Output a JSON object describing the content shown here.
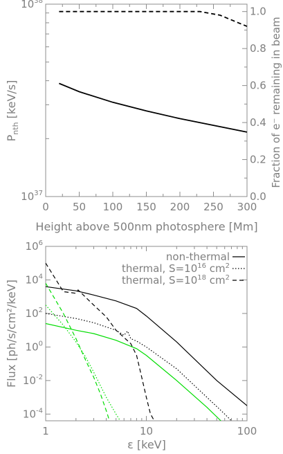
{
  "chart_data": [
    {
      "type": "line",
      "xlabel": "Height above 500nm photosphere [Mm]",
      "ylabel_main": "P",
      "ylabel_sub": "nth",
      "ylabel_unit": " [keV/s]",
      "ylabel_right": "Fraction of e⁻ remaining in beam",
      "xlim": [
        0,
        300
      ],
      "ylim_log10": [
        37,
        38
      ],
      "y_right_lim": [
        0,
        1.04
      ],
      "x_ticks": [
        "0",
        "50",
        "100",
        "150",
        "200",
        "250",
        "300"
      ],
      "x_tick_values": [
        0,
        50,
        100,
        150,
        200,
        250,
        300
      ],
      "y_tick_labels": [
        {
          "base": "10",
          "exp": "38",
          "log10": 38
        },
        {
          "base": "10",
          "exp": "37",
          "log10": 37
        }
      ],
      "y_right_ticks": [
        "0.0",
        "0.2",
        "0.4",
        "0.6",
        "0.8",
        "1.0"
      ],
      "y_right_tick_values": [
        0,
        0.2,
        0.4,
        0.6,
        0.8,
        1.0
      ],
      "series": [
        {
          "axis": "left",
          "style": "solid",
          "x": [
            20,
            50,
            100,
            150,
            200,
            250,
            300
          ],
          "log10_y": [
            37.588,
            37.545,
            37.49,
            37.445,
            37.405,
            37.37,
            37.335
          ]
        },
        {
          "axis": "right",
          "style": "dashed",
          "x": [
            20,
            100,
            200,
            230,
            260,
            280,
            300
          ],
          "y": [
            1.0,
            1.0,
            1.0,
            1.0,
            0.98,
            0.95,
            0.92
          ]
        }
      ]
    },
    {
      "type": "line",
      "xlabel": "ε [keV]",
      "ylabel": "Flux [ph/s/cm²/keV]",
      "x_log10_lim": [
        0,
        2
      ],
      "y_log10_lim": [
        -4.4,
        6
      ],
      "x_ticks": [
        "1",
        "10",
        "100"
      ],
      "x_tick_values": [
        1,
        10,
        100
      ],
      "y_tick_labels": [
        {
          "base": "10",
          "exp": "6",
          "log10": 6
        },
        {
          "base": "10",
          "exp": "4",
          "log10": 4
        },
        {
          "base": "10",
          "exp": "2",
          "log10": 2
        },
        {
          "base": "10",
          "exp": "0",
          "log10": 0
        },
        {
          "base": "10",
          "exp": "-2",
          "log10": -2
        },
        {
          "base": "10",
          "exp": "-4",
          "log10": -4
        }
      ],
      "legend": [
        {
          "label": "non-thermal",
          "style": "solid"
        },
        {
          "label": "thermal, S=10",
          "exp": "16",
          "unit": " cm",
          "unit_exp": "2",
          "style": "dotted"
        },
        {
          "label": "thermal, S=10",
          "exp": "18",
          "unit": " cm",
          "unit_exp": "2",
          "style": "dashed"
        }
      ],
      "series": [
        {
          "color": "#000000",
          "style": "solid",
          "x": [
            1,
            2,
            3,
            5,
            8,
            10,
            20,
            50,
            100
          ],
          "log10_y": [
            3.6,
            3.35,
            3.1,
            2.75,
            2.3,
            1.85,
            0.3,
            -2.0,
            -3.5
          ]
        },
        {
          "color": "#000000",
          "style": "dotted",
          "x": [
            1,
            2,
            3,
            5,
            6,
            6.5,
            7,
            8,
            10,
            20,
            40,
            60,
            70
          ],
          "log10_y": [
            2.0,
            1.7,
            1.45,
            1.0,
            0.7,
            0.95,
            0.5,
            0.35,
            0.0,
            -1.3,
            -3.0,
            -4.0,
            -4.4
          ]
        },
        {
          "color": "#000000",
          "style": "dashed",
          "x": [
            1,
            1.5,
            2.0,
            2.1,
            3,
            4,
            5,
            7,
            8,
            9,
            10,
            11,
            12
          ],
          "log10_y": [
            5.0,
            3.3,
            3.2,
            3.4,
            2.5,
            1.8,
            1.0,
            0.2,
            -0.5,
            -1.8,
            -3.0,
            -4.0,
            -4.4
          ]
        },
        {
          "color": "#00dd00",
          "style": "solid",
          "x": [
            1,
            2,
            3,
            5,
            8,
            10,
            20,
            40,
            55
          ],
          "log10_y": [
            1.4,
            1.0,
            0.8,
            0.4,
            -0.1,
            -0.5,
            -2.0,
            -3.6,
            -4.4
          ]
        },
        {
          "color": "#00dd00",
          "style": "dotted",
          "x": [
            1,
            1.5,
            2,
            2.5,
            3,
            4,
            5,
            5.5
          ],
          "log10_y": [
            2.5,
            1.3,
            0.3,
            -0.6,
            -1.5,
            -3.0,
            -4.0,
            -4.4
          ]
        },
        {
          "color": "#00dd00",
          "style": "dashed",
          "x": [
            1,
            1.5,
            2,
            2.5,
            3,
            3.5,
            4,
            4.3
          ],
          "log10_y": [
            3.8,
            2.0,
            0.5,
            -0.8,
            -1.8,
            -2.8,
            -3.8,
            -4.4
          ]
        }
      ]
    }
  ]
}
